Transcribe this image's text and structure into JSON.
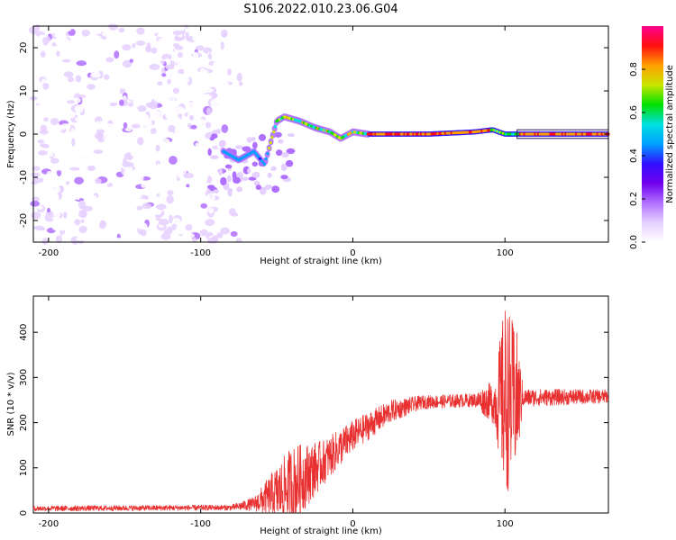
{
  "title": "S106.2022.010.23.06.G04",
  "colors": {
    "snr_line": "#e83030",
    "colormap": [
      "#ffffff",
      "#e6d0ff",
      "#b070ff",
      "#7000ee",
      "#3010ff",
      "#00a0ff",
      "#00e0e0",
      "#00e000",
      "#c8e600",
      "#ffa000",
      "#ff1010",
      "#ff0090"
    ]
  },
  "chart_data": [
    {
      "type": "heatmap",
      "name": "spectrogram",
      "xlabel": "Height of straight line (km)",
      "ylabel": "Frequency (Hz)",
      "xlim": [
        -210,
        168
      ],
      "ylim": [
        -25,
        25
      ],
      "xticks": [
        -200,
        -100,
        0,
        100
      ],
      "yticks": [
        -20,
        -10,
        0,
        10,
        20
      ],
      "colorbar": {
        "label": "Normalized spectral amplitude",
        "range": [
          0.0,
          1.0
        ],
        "ticks": [
          0.0,
          0.2,
          0.4,
          0.6,
          0.8
        ]
      },
      "noise_region_x": [
        -210,
        -70
      ],
      "trace": [
        {
          "x": -85,
          "f": -4
        },
        {
          "x": -75,
          "f": -6
        },
        {
          "x": -65,
          "f": -4
        },
        {
          "x": -58,
          "f": -7
        },
        {
          "x": -50,
          "f": 3
        },
        {
          "x": -45,
          "f": 4
        },
        {
          "x": -35,
          "f": 3
        },
        {
          "x": -25,
          "f": 1.5
        },
        {
          "x": -15,
          "f": 0.5
        },
        {
          "x": -8,
          "f": -1
        },
        {
          "x": 0,
          "f": 0.5
        },
        {
          "x": 10,
          "f": 0
        },
        {
          "x": 50,
          "f": 0
        },
        {
          "x": 80,
          "f": 0.5
        },
        {
          "x": 92,
          "f": 1
        },
        {
          "x": 100,
          "f": 0
        },
        {
          "x": 110,
          "f": 0
        },
        {
          "x": 168,
          "f": 0
        }
      ]
    },
    {
      "type": "line",
      "name": "snr",
      "xlabel": "Height of straight line (km)",
      "ylabel": "SNR (10 * v/v)",
      "xlim": [
        -210,
        168
      ],
      "ylim": [
        0,
        480
      ],
      "xticks": [
        -200,
        -100,
        0,
        100
      ],
      "yticks": [
        0,
        100,
        200,
        300,
        400
      ],
      "envelope": [
        {
          "x": -210,
          "mean": 10,
          "amp": 6
        },
        {
          "x": -80,
          "mean": 12,
          "amp": 6
        },
        {
          "x": -65,
          "mean": 20,
          "amp": 15
        },
        {
          "x": -40,
          "mean": 60,
          "amp": 90
        },
        {
          "x": -20,
          "mean": 110,
          "amp": 50
        },
        {
          "x": 0,
          "mean": 170,
          "amp": 35
        },
        {
          "x": 25,
          "mean": 225,
          "amp": 25
        },
        {
          "x": 45,
          "mean": 245,
          "amp": 15
        },
        {
          "x": 80,
          "mean": 250,
          "amp": 15
        },
        {
          "x": 93,
          "mean": 245,
          "amp": 50
        },
        {
          "x": 100,
          "mean": 250,
          "amp": 220
        },
        {
          "x": 108,
          "mean": 250,
          "amp": 150
        },
        {
          "x": 112,
          "mean": 255,
          "amp": 20
        },
        {
          "x": 168,
          "mean": 258,
          "amp": 15
        }
      ]
    }
  ]
}
